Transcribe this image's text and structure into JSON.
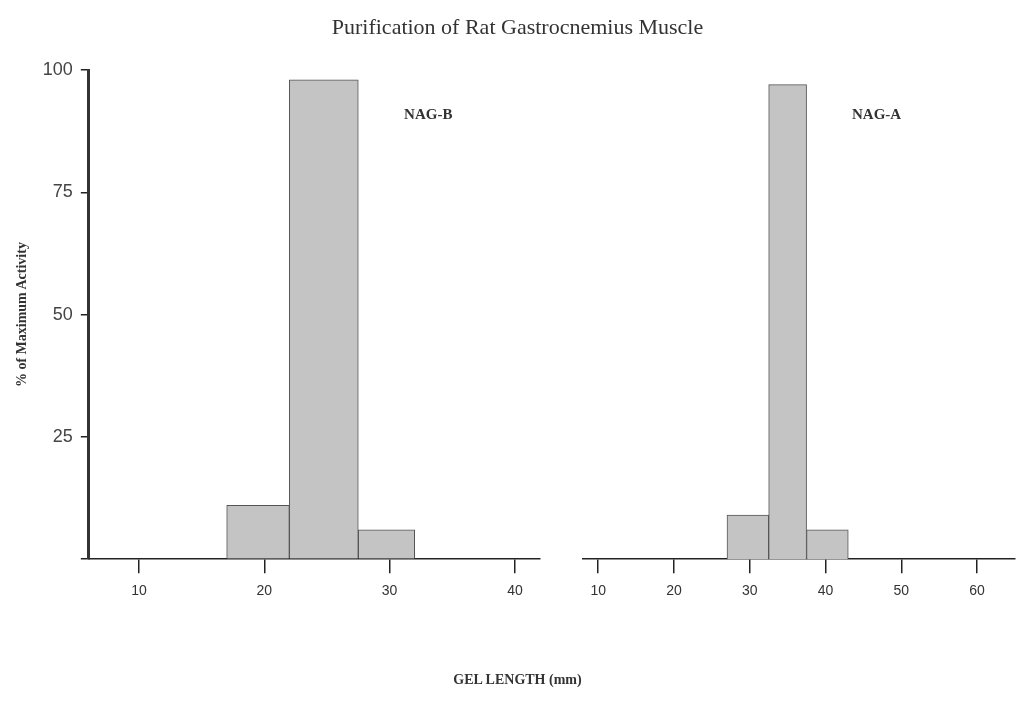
{
  "chart_data": [
    {
      "type": "histogram",
      "title": "Purification of Rat Gastrocnemius Muscle",
      "xlabel": "GEL LENGTH (mm)",
      "ylabel": "% of Maximum Activity",
      "bins": [
        17,
        22,
        27.5,
        32
      ],
      "values": [
        11,
        98,
        6
      ],
      "color": "#c4c4c4",
      "xlim": [
        6,
        42
      ],
      "xticks": [
        10,
        20,
        30,
        40
      ],
      "ylim": [
        0,
        100
      ],
      "yticks": [
        {
          "value": 0,
          "label": null
        },
        25,
        50,
        75,
        100
      ],
      "grid": false,
      "legend": false,
      "annotations": [
        "NAG-B"
      ]
    },
    {
      "type": "histogram",
      "bins": [
        27,
        32.5,
        37.5,
        43
      ],
      "values": [
        9,
        97,
        6
      ],
      "color": "#c4c4c4",
      "xlim": [
        8,
        65
      ],
      "xticks": [
        10,
        20,
        30,
        40,
        50,
        60
      ],
      "ylim": [
        0,
        100
      ],
      "yticks": [
        {
          "value": 0,
          "label": null
        },
        25,
        50,
        75,
        100
      ],
      "grid": false,
      "legend": false,
      "tick_labels": "x",
      "annotations": [
        "NAG-A"
      ]
    }
  ]
}
